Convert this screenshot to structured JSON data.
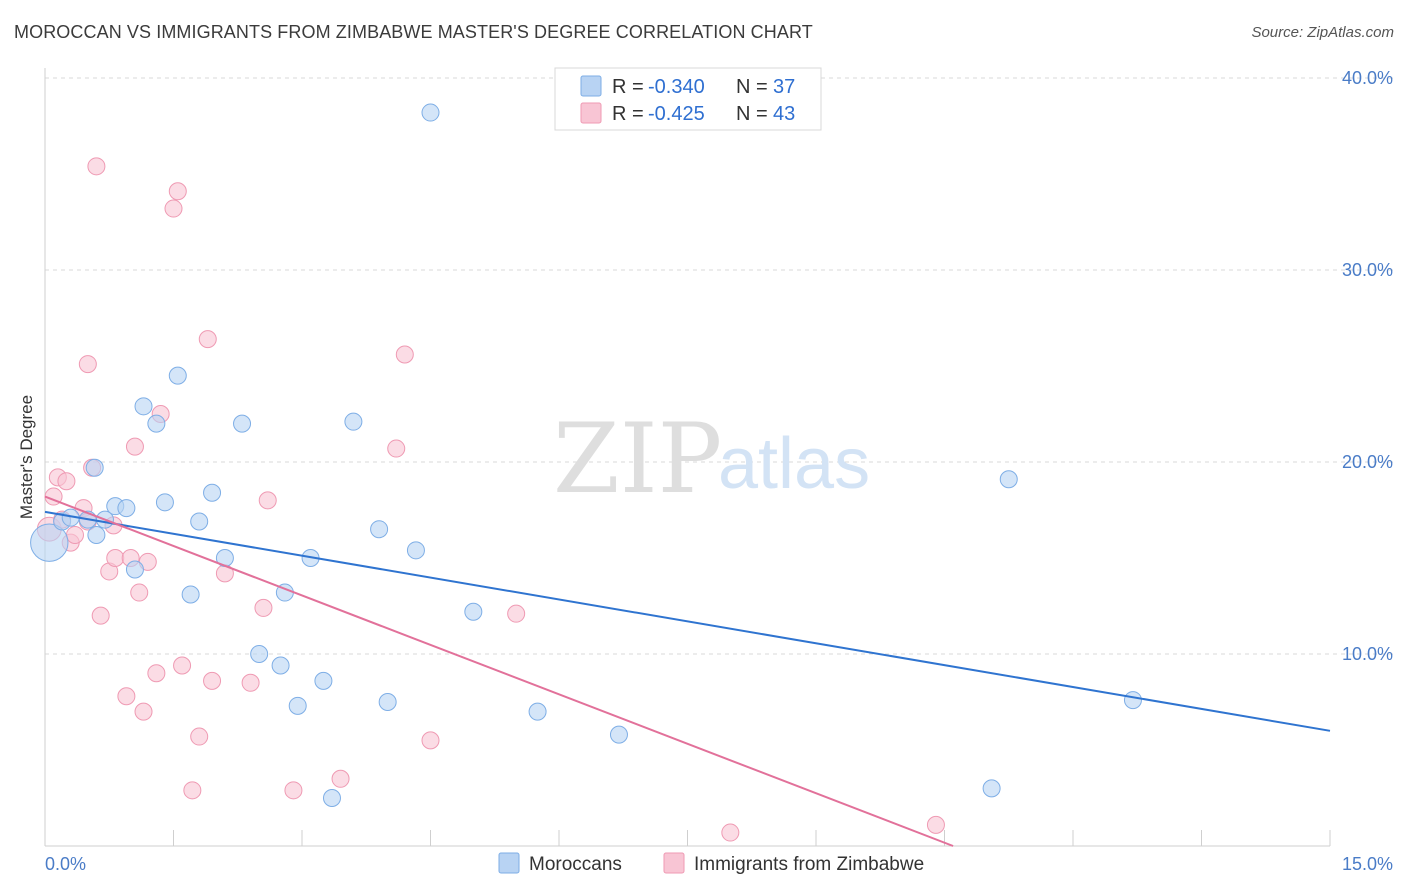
{
  "header": {
    "title": "MOROCCAN VS IMMIGRANTS FROM ZIMBABWE MASTER'S DEGREE CORRELATION CHART",
    "source": "Source: ZipAtlas.com"
  },
  "watermark": {
    "zip": "ZIP",
    "atlas": "atlas"
  },
  "colors": {
    "blue_fill": "#b8d3f3",
    "blue_stroke": "#7eaee6",
    "blue_line": "#2f74d0",
    "pink_fill": "#f8c5d4",
    "pink_stroke": "#ef9ab3",
    "pink_line": "#e2719a",
    "grid": "#d9d9d9",
    "axis_label": "#4a7cc7"
  },
  "legend": {
    "rows": [
      {
        "r_label": "R =",
        "r_value": "-0.340",
        "n_label": "N =",
        "n_value": "37",
        "color": "#b8d3f3"
      },
      {
        "r_label": "R =",
        "r_value": "-0.425",
        "n_label": "N =",
        "n_value": "43",
        "color": "#f8c5d4"
      }
    ]
  },
  "bottom_legend": {
    "items": [
      {
        "label": "Moroccans",
        "color": "#b8d3f3"
      },
      {
        "label": "Immigrants from Zimbabwe",
        "color": "#f8c5d4"
      }
    ]
  },
  "chart_data": {
    "type": "scatter",
    "title": "MOROCCAN VS IMMIGRANTS FROM ZIMBABWE MASTER'S DEGREE CORRELATION CHART",
    "xlabel": "",
    "ylabel": "Master's Degree",
    "xlim": [
      0,
      15
    ],
    "ylim": [
      0,
      40
    ],
    "x_tick_labels": [
      "0.0%",
      "15.0%"
    ],
    "y_ticks": [
      10,
      20,
      30,
      40
    ],
    "y_tick_labels": [
      "10.0%",
      "20.0%",
      "30.0%",
      "40.0%"
    ],
    "series": [
      {
        "name": "Moroccans",
        "r": -0.34,
        "n": 37,
        "trend": {
          "x0": 0.0,
          "y0": 17.4,
          "x1": 15.0,
          "y1": 6.0
        },
        "points": [
          [
            0.05,
            15.8,
            2.2
          ],
          [
            0.2,
            16.9,
            1
          ],
          [
            0.3,
            17.1,
            1
          ],
          [
            0.58,
            19.7,
            1
          ],
          [
            0.82,
            17.7,
            1
          ],
          [
            0.7,
            17.0,
            1
          ],
          [
            0.6,
            16.2,
            1
          ],
          [
            0.95,
            17.6,
            1
          ],
          [
            1.05,
            14.4,
            1
          ],
          [
            1.15,
            22.9,
            1
          ],
          [
            1.3,
            22.0,
            1
          ],
          [
            1.4,
            17.9,
            1
          ],
          [
            1.55,
            24.5,
            1
          ],
          [
            1.7,
            13.1,
            1
          ],
          [
            1.8,
            16.9,
            1
          ],
          [
            1.95,
            18.4,
            1
          ],
          [
            2.1,
            15.0,
            1
          ],
          [
            2.3,
            22.0,
            1
          ],
          [
            2.5,
            10.0,
            1
          ],
          [
            2.75,
            9.4,
            1
          ],
          [
            2.8,
            13.2,
            1
          ],
          [
            2.95,
            7.3,
            1
          ],
          [
            3.1,
            15.0,
            1
          ],
          [
            3.25,
            8.6,
            1
          ],
          [
            3.35,
            2.5,
            1
          ],
          [
            3.6,
            22.1,
            1
          ],
          [
            3.9,
            16.5,
            1
          ],
          [
            4.0,
            7.5,
            1
          ],
          [
            4.33,
            15.4,
            1
          ],
          [
            4.5,
            38.2,
            1
          ],
          [
            5.0,
            12.2,
            1
          ],
          [
            5.75,
            7.0,
            1
          ],
          [
            6.7,
            5.8,
            1
          ],
          [
            11.25,
            19.1,
            1
          ],
          [
            11.05,
            3.0,
            1
          ],
          [
            12.7,
            7.6,
            1
          ],
          [
            0.5,
            17.0,
            1
          ]
        ]
      },
      {
        "name": "Immigrants from Zimbabwe",
        "r": -0.425,
        "n": 43,
        "trend": {
          "x0": 0.0,
          "y0": 18.2,
          "x1": 10.6,
          "y1": 0.0
        },
        "points": [
          [
            0.05,
            16.5,
            1.4
          ],
          [
            0.1,
            18.2,
            1
          ],
          [
            0.15,
            19.2,
            1
          ],
          [
            0.2,
            17.0,
            1
          ],
          [
            0.25,
            19.0,
            1
          ],
          [
            0.3,
            15.8,
            1
          ],
          [
            0.35,
            16.2,
            1
          ],
          [
            0.45,
            17.6,
            1
          ],
          [
            0.5,
            16.9,
            1
          ],
          [
            0.55,
            19.7,
            1
          ],
          [
            0.5,
            25.1,
            1
          ],
          [
            0.65,
            12.0,
            1
          ],
          [
            0.75,
            14.3,
            1
          ],
          [
            0.8,
            16.7,
            1
          ],
          [
            0.82,
            15.0,
            1
          ],
          [
            0.6,
            35.4,
            1
          ],
          [
            0.95,
            7.8,
            1
          ],
          [
            1.0,
            15.0,
            1
          ],
          [
            1.05,
            20.8,
            1
          ],
          [
            1.1,
            13.2,
            1
          ],
          [
            1.15,
            7.0,
            1
          ],
          [
            1.2,
            14.8,
            1
          ],
          [
            1.3,
            9.0,
            1
          ],
          [
            1.35,
            22.5,
            1
          ],
          [
            1.5,
            33.2,
            1
          ],
          [
            1.55,
            34.1,
            1
          ],
          [
            1.6,
            9.4,
            1
          ],
          [
            1.72,
            2.9,
            1
          ],
          [
            1.8,
            5.7,
            1
          ],
          [
            1.9,
            26.4,
            1
          ],
          [
            1.95,
            8.6,
            1
          ],
          [
            2.1,
            14.2,
            1
          ],
          [
            2.4,
            8.5,
            1
          ],
          [
            2.55,
            12.4,
            1
          ],
          [
            2.6,
            18.0,
            1
          ],
          [
            2.9,
            2.9,
            1
          ],
          [
            3.45,
            3.5,
            1
          ],
          [
            4.1,
            20.7,
            1
          ],
          [
            4.2,
            25.6,
            1
          ],
          [
            4.5,
            5.5,
            1
          ],
          [
            5.5,
            12.1,
            1
          ],
          [
            8.0,
            0.7,
            1
          ],
          [
            10.4,
            1.1,
            1
          ]
        ]
      }
    ]
  }
}
